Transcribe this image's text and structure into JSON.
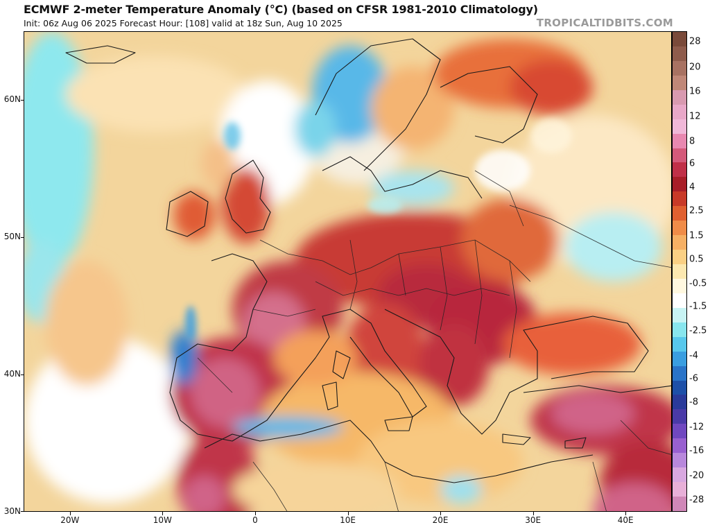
{
  "header": {
    "title": "ECMWF 2-meter Temperature Anomaly (°C) (based on CFSR 1981-2010 Climatology)",
    "subtitle": "Init: 06z Aug 06 2025   Forecast Hour: [108]   valid at 18z Sun, Aug 10 2025",
    "watermark": "TROPICALTIDBITS.COM"
  },
  "map": {
    "projection": "lat-lon",
    "lon_range": [
      -25,
      45
    ],
    "lat_range": [
      30,
      65
    ],
    "lat_labels": [
      {
        "lat": 60,
        "text": "60N"
      },
      {
        "lat": 50,
        "text": "50N"
      },
      {
        "lat": 40,
        "text": "40N"
      },
      {
        "lat": 30,
        "text": "30N"
      }
    ],
    "lon_labels": [
      {
        "lon": -20,
        "text": "20W"
      },
      {
        "lon": -10,
        "text": "10W"
      },
      {
        "lon": 0,
        "text": "0"
      },
      {
        "lon": 10,
        "text": "10E"
      },
      {
        "lon": 20,
        "text": "20E"
      },
      {
        "lon": 30,
        "text": "30E"
      },
      {
        "lon": 40,
        "text": "40E"
      }
    ]
  },
  "colorbar": {
    "unit": "°C",
    "segments": [
      {
        "color": "#7a4a3a"
      },
      {
        "color": "#8f5c4c"
      },
      {
        "color": "#a87262"
      },
      {
        "color": "#c08878"
      },
      {
        "color": "#d89ab0"
      },
      {
        "color": "#e8a8c8"
      },
      {
        "color": "#f0b8d8"
      },
      {
        "color": "#e888b0"
      },
      {
        "color": "#d45a7a"
      },
      {
        "color": "#c03048"
      },
      {
        "color": "#a81e28"
      },
      {
        "color": "#c83a28"
      },
      {
        "color": "#e06030"
      },
      {
        "color": "#f08c48"
      },
      {
        "color": "#f6b064"
      },
      {
        "color": "#fad084"
      },
      {
        "color": "#fce8b0"
      },
      {
        "color": "#fff8e0"
      },
      {
        "color": "#ffffff"
      },
      {
        "color": "#c8f4f4"
      },
      {
        "color": "#88e6ee"
      },
      {
        "color": "#58c8ec"
      },
      {
        "color": "#3a9ee0"
      },
      {
        "color": "#2a74c8"
      },
      {
        "color": "#1e50a8"
      },
      {
        "color": "#2a3a9a"
      },
      {
        "color": "#4a3aa8"
      },
      {
        "color": "#7048c0"
      },
      {
        "color": "#9860d0"
      },
      {
        "color": "#b888dc"
      },
      {
        "color": "#d8a8e0"
      },
      {
        "color": "#e8b0d8"
      },
      {
        "color": "#d088b8"
      }
    ],
    "labels": [
      {
        "value": "28",
        "pos": 0.022
      },
      {
        "value": "20",
        "pos": 0.075
      },
      {
        "value": "16",
        "pos": 0.125
      },
      {
        "value": "12",
        "pos": 0.178
      },
      {
        "value": "8",
        "pos": 0.229
      },
      {
        "value": "6",
        "pos": 0.275
      },
      {
        "value": "4",
        "pos": 0.325
      },
      {
        "value": "2.5",
        "pos": 0.374
      },
      {
        "value": "1.5",
        "pos": 0.426
      },
      {
        "value": "0.5",
        "pos": 0.475
      },
      {
        "value": "-0.5",
        "pos": 0.525
      },
      {
        "value": "-1.5",
        "pos": 0.573
      },
      {
        "value": "-2.5",
        "pos": 0.624
      },
      {
        "value": "-4",
        "pos": 0.675
      },
      {
        "value": "-6",
        "pos": 0.723
      },
      {
        "value": "-8",
        "pos": 0.772
      },
      {
        "value": "-12",
        "pos": 0.824
      },
      {
        "value": "-16",
        "pos": 0.873
      },
      {
        "value": "-20",
        "pos": 0.925
      },
      {
        "value": "-28",
        "pos": 0.975
      }
    ]
  }
}
